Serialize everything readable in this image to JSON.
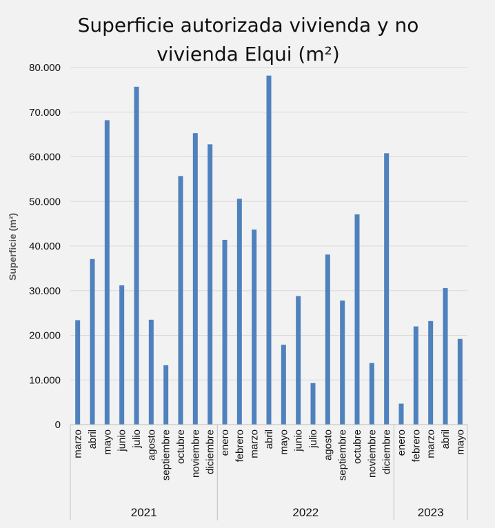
{
  "chart_data": {
    "type": "bar",
    "title": "Superficie autorizada vivienda y no vivienda Elqui (m²)",
    "title_lines": [
      "Superficie autorizada vivienda y no",
      "vivienda Elqui (m²)"
    ],
    "ylabel": "Superficie  (m²)",
    "xlabel": "",
    "ylim": [
      0,
      80000
    ],
    "yticks": [
      0,
      10000,
      20000,
      30000,
      40000,
      50000,
      60000,
      70000,
      80000
    ],
    "ytick_labels": [
      "0",
      "10.000",
      "20.000",
      "30.000",
      "40.000",
      "50.000",
      "60.000",
      "70.000",
      "80.000"
    ],
    "grid": true,
    "legend": "none",
    "bar_color": "#4f81bd",
    "groups": [
      {
        "label": "2021",
        "count": 10
      },
      {
        "label": "2022",
        "count": 12
      },
      {
        "label": "2023",
        "count": 5
      }
    ],
    "categories": [
      "marzo",
      "abril",
      "mayo",
      "junio",
      "julio",
      "agosto",
      "septiembre",
      "octubre",
      "noviembre",
      "diciembre",
      "enero",
      "febrero",
      "marzo",
      "abril",
      "mayo",
      "junio",
      "julio",
      "agosto",
      "septiembre",
      "octubre",
      "noviembre",
      "diciembre",
      "enero",
      "febrero",
      "marzo",
      "abril",
      "mayo"
    ],
    "values": [
      23400,
      37100,
      68200,
      31200,
      75700,
      23500,
      13300,
      55700,
      65300,
      62800,
      41400,
      50600,
      43700,
      78200,
      17900,
      28800,
      9300,
      38100,
      27800,
      47100,
      13800,
      60800,
      4700,
      22000,
      23200,
      30600,
      19200
    ]
  }
}
